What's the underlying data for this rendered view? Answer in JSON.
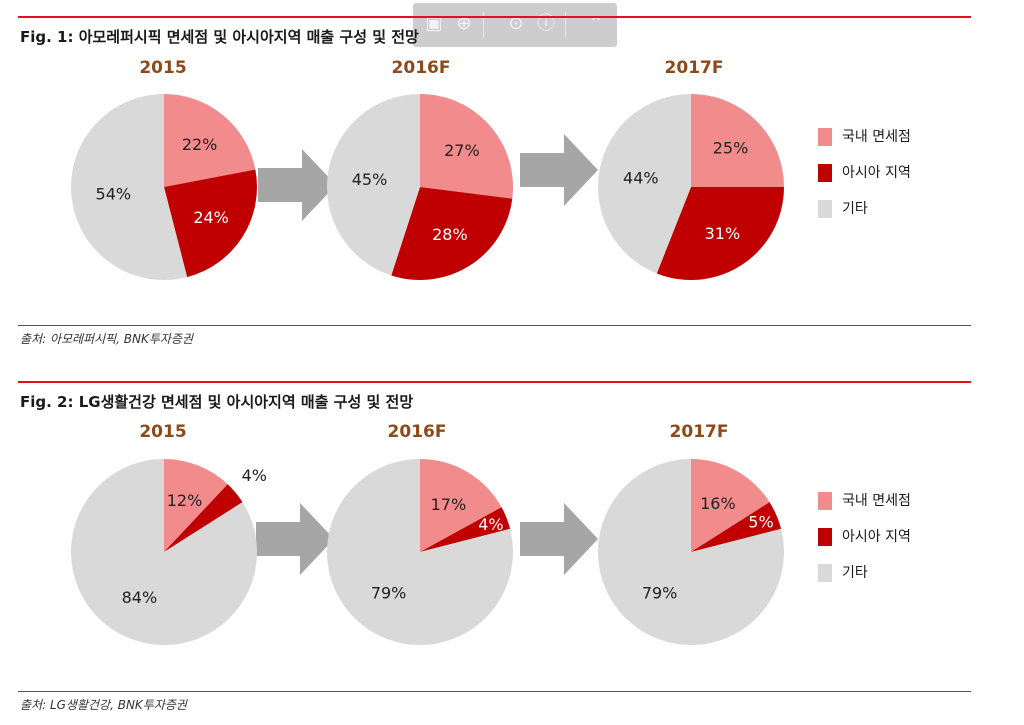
{
  "colors": {
    "domestic": "#f28b8b",
    "asia": "#c00000",
    "other": "#d9d9d9",
    "arrow": "#a6a6a6",
    "accent_red": "#e3101c",
    "year": "#8c4a1a"
  },
  "toolbar": {
    "icons": [
      "image-icon",
      "zoom-in-icon",
      "info-icon",
      "collapse-icon"
    ]
  },
  "legend": {
    "items": [
      "국내 면세점",
      "아시아 지역",
      "기타"
    ]
  },
  "figures": [
    {
      "title": "Fig. 1: 아모레퍼시픽 면세점 및 아시아지역 매출 구성 및 전망",
      "source": "출처: 아모레퍼시픽, BNK투자증권"
    },
    {
      "title": "Fig. 2: LG생활건강 면세점 및 아시아지역 매출 구성 및 전망",
      "source": "출처: LG생활건강, BNK투자증권"
    }
  ],
  "chart_data": [
    {
      "type": "pie",
      "title": "Fig. 1: 아모레퍼시픽 면세점 및 아시아지역 매출 구성 및 전망",
      "categories": [
        "국내 면세점",
        "아시아 지역",
        "기타"
      ],
      "series": [
        {
          "name": "2015",
          "values": [
            22,
            24,
            54
          ]
        },
        {
          "name": "2016F",
          "values": [
            27,
            28,
            45
          ]
        },
        {
          "name": "2017F",
          "values": [
            25,
            31,
            44
          ]
        }
      ],
      "legend": "right"
    },
    {
      "type": "pie",
      "title": "Fig. 2: LG생활건강 면세점 및 아시아지역 매출 구성 및 전망",
      "categories": [
        "국내 면세점",
        "아시아 지역",
        "기타"
      ],
      "series": [
        {
          "name": "2015",
          "values": [
            12,
            4,
            84
          ]
        },
        {
          "name": "2016F",
          "values": [
            17,
            4,
            79
          ]
        },
        {
          "name": "2017F",
          "values": [
            16,
            5,
            79
          ]
        }
      ],
      "legend": "right"
    }
  ]
}
